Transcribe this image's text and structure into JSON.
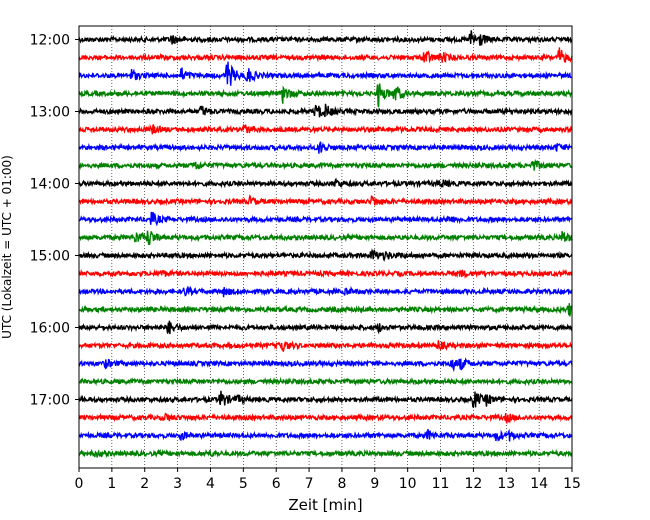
{
  "chart_data": {
    "type": "line",
    "title": "",
    "xlabel": "Zeit  [min]",
    "ylabel": "UTC (Lokalzeit = UTC + 01:00)",
    "xlim": [
      0,
      15
    ],
    "x_ticks": [
      "0",
      "1",
      "2",
      "3",
      "4",
      "5",
      "6",
      "7",
      "8",
      "9",
      "10",
      "11",
      "12",
      "13",
      "14",
      "15"
    ],
    "y_ticks": [
      "12:00",
      "13:00",
      "14:00",
      "15:00",
      "16:00",
      "17:00"
    ],
    "grid": "vertical dotted at each minute",
    "trace_interval_min": 15,
    "trace_colors": [
      "#000000",
      "#ff0000",
      "#0000ff",
      "#008000"
    ],
    "traces": [
      {
        "start": "12:00",
        "color": "#000000",
        "events": [
          [
            2.8,
            0.5
          ],
          [
            11.9,
            1.0
          ],
          [
            12.2,
            0.5
          ]
        ]
      },
      {
        "start": "12:15",
        "color": "#ff0000",
        "events": [
          [
            10.5,
            0.9
          ],
          [
            11.0,
            0.6
          ],
          [
            14.6,
            1.0
          ]
        ]
      },
      {
        "start": "12:30",
        "color": "#0000ff",
        "events": [
          [
            1.6,
            0.6
          ],
          [
            3.1,
            0.8
          ],
          [
            4.5,
            1.8
          ],
          [
            5.1,
            1.0
          ]
        ]
      },
      {
        "start": "12:45",
        "color": "#008000",
        "events": [
          [
            6.2,
            0.9
          ],
          [
            9.1,
            1.4
          ],
          [
            9.6,
            1.0
          ]
        ]
      },
      {
        "start": "13:00",
        "color": "#000000",
        "events": [
          [
            3.7,
            0.6
          ],
          [
            7.2,
            0.9
          ],
          [
            7.5,
            0.5
          ]
        ]
      },
      {
        "start": "13:15",
        "color": "#ff0000",
        "events": [
          [
            2.2,
            0.5
          ],
          [
            5.0,
            0.5
          ]
        ]
      },
      {
        "start": "13:30",
        "color": "#0000ff",
        "events": [
          [
            7.3,
            0.7
          ],
          [
            14.5,
            0.4
          ]
        ]
      },
      {
        "start": "13:45",
        "color": "#008000",
        "events": [
          [
            3.5,
            0.5
          ],
          [
            13.8,
            0.6
          ]
        ]
      },
      {
        "start": "14:00",
        "color": "#000000",
        "events": [
          [
            7.8,
            0.4
          ],
          [
            11.0,
            0.4
          ]
        ]
      },
      {
        "start": "14:15",
        "color": "#ff0000",
        "events": [
          [
            8.9,
            0.6
          ],
          [
            5.2,
            0.4
          ]
        ]
      },
      {
        "start": "14:30",
        "color": "#0000ff",
        "events": [
          [
            2.2,
            0.8
          ],
          [
            11.2,
            0.4
          ]
        ]
      },
      {
        "start": "14:45",
        "color": "#008000",
        "events": [
          [
            1.7,
            0.6
          ],
          [
            2.1,
            1.0
          ],
          [
            14.7,
            0.7
          ]
        ]
      },
      {
        "start": "15:00",
        "color": "#000000",
        "events": [
          [
            8.9,
            0.7
          ],
          [
            9.3,
            0.4
          ]
        ]
      },
      {
        "start": "15:15",
        "color": "#ff0000",
        "events": [
          [
            2.5,
            0.3
          ],
          [
            11.6,
            0.3
          ]
        ]
      },
      {
        "start": "15:30",
        "color": "#0000ff",
        "events": [
          [
            3.2,
            0.4
          ],
          [
            4.4,
            0.4
          ],
          [
            8.1,
            0.3
          ]
        ]
      },
      {
        "start": "15:45",
        "color": "#008000",
        "events": [
          [
            14.9,
            0.7
          ]
        ]
      },
      {
        "start": "16:00",
        "color": "#000000",
        "events": [
          [
            2.7,
            0.8
          ],
          [
            9.1,
            0.4
          ]
        ]
      },
      {
        "start": "16:15",
        "color": "#ff0000",
        "events": [
          [
            6.1,
            0.9
          ],
          [
            10.9,
            0.5
          ]
        ]
      },
      {
        "start": "16:30",
        "color": "#0000ff",
        "events": [
          [
            0.8,
            0.4
          ],
          [
            11.3,
            0.8
          ],
          [
            11.6,
            0.5
          ]
        ]
      },
      {
        "start": "16:45",
        "color": "#008000",
        "events": []
      },
      {
        "start": "17:00",
        "color": "#000000",
        "events": [
          [
            4.3,
            1.0
          ],
          [
            4.8,
            0.4
          ],
          [
            12.0,
            1.0
          ],
          [
            12.4,
            0.5
          ]
        ]
      },
      {
        "start": "17:15",
        "color": "#ff0000",
        "events": [
          [
            2.6,
            0.4
          ],
          [
            13.0,
            0.4
          ]
        ]
      },
      {
        "start": "17:30",
        "color": "#0000ff",
        "events": [
          [
            3.1,
            0.4
          ],
          [
            10.6,
            0.5
          ],
          [
            12.7,
            0.6
          ],
          [
            13.1,
            0.4
          ]
        ]
      },
      {
        "start": "17:45",
        "color": "#008000",
        "events": [
          [
            0.5,
            0.3
          ],
          [
            3.9,
            0.3
          ]
        ]
      }
    ]
  }
}
